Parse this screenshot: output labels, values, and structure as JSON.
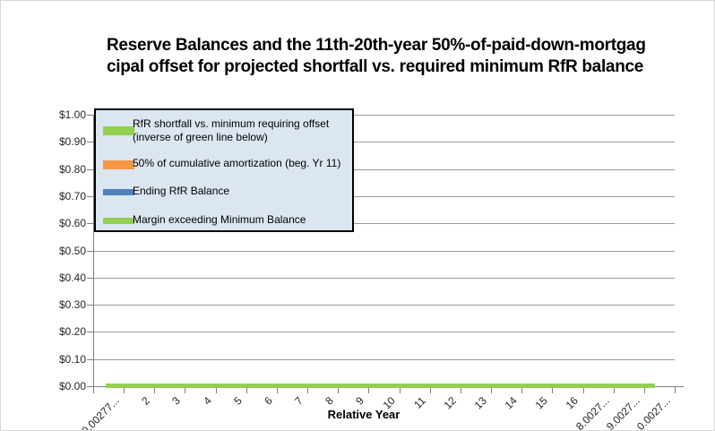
{
  "chart": {
    "title_lines": [
      "Reserve Balances and the 11th-20th-year 50%-of-paid-down-mortgag",
      "cipal offset for projected shortfall vs. required minimum RfR balance"
    ],
    "legend": {
      "items": [
        {
          "label_lines": [
            "RfR shortfall vs. minimum requiring offset",
            "(inverse of green line below)"
          ],
          "color": "#92D050",
          "swatch": "thick-bar"
        },
        {
          "label_lines": [
            "50% of cumulative amortization (beg. Yr 11)"
          ],
          "color": "#F79646",
          "swatch": "thick-bar"
        },
        {
          "label_lines": [
            "Ending RfR Balance"
          ],
          "color": "#4F81BD",
          "swatch": "line"
        },
        {
          "label_lines": [
            "Margin exceeding Minimum Balance"
          ],
          "color": "#92D050",
          "swatch": "line"
        }
      ]
    },
    "y_axis": {
      "tick_labels": [
        "$1.00",
        "$0.90",
        "$0.80",
        "$0.70",
        "$0.60",
        "$0.50",
        "$0.40",
        "$0.30",
        "$0.20",
        "$0.10",
        "$0.00"
      ]
    },
    "x_axis": {
      "title": "Relative Year",
      "tick_labels": [
        "0.00277...",
        "2",
        "3",
        "4",
        "5",
        "6",
        "7",
        "8",
        "9",
        "10",
        "11",
        "12",
        "13",
        "14",
        "15",
        "16",
        "8.0027...",
        "9.0027...",
        "0.0027..."
      ]
    },
    "colors": {
      "green": "#92D050",
      "orange": "#F79646",
      "blue": "#4F81BD",
      "legend_bg": "#DCE6F1",
      "gridline": "#9A9A9A",
      "axis": "#808080"
    }
  },
  "chart_data": {
    "type": "combo",
    "title": "Reserve Balances and the 11th-20th-year 50%-of-paid-down-mortgag... / cipal offset for projected shortfall vs. required minimum RfR balance...",
    "xlabel": "Relative Year",
    "ylabel": "",
    "ylim": [
      0,
      1
    ],
    "y_tick_step": 0.1,
    "y_tick_format": "$#.00",
    "grid": "horizontal",
    "legend_position": "upper-left-overlay",
    "categories": [
      "0.00277...",
      "2",
      "3",
      "4",
      "5",
      "6",
      "7",
      "8",
      "9",
      "10",
      "11",
      "12",
      "13",
      "14",
      "15",
      "16",
      "8.0027...",
      "9.0027...",
      "0.0027..."
    ],
    "series": [
      {
        "name": "RfR shortfall vs. minimum requiring offset (inverse of green line below)",
        "type": "bar",
        "color": "#92D050",
        "values": [
          0,
          0,
          0,
          0,
          0,
          0,
          0,
          0,
          0,
          0,
          0,
          0,
          0,
          0,
          0,
          0,
          0,
          0,
          0
        ]
      },
      {
        "name": "50% of cumulative amortization (beg. Yr 11)",
        "type": "bar",
        "color": "#F79646",
        "values": [
          0,
          0,
          0,
          0,
          0,
          0,
          0,
          0,
          0,
          0,
          0,
          0,
          0,
          0,
          0,
          0,
          0,
          0,
          0
        ]
      },
      {
        "name": "Ending RfR Balance",
        "type": "line",
        "color": "#4F81BD",
        "values": [
          0,
          0,
          0,
          0,
          0,
          0,
          0,
          0,
          0,
          0,
          0,
          0,
          0,
          0,
          0,
          0,
          0,
          0,
          0
        ]
      },
      {
        "name": "Margin exceeding Minimum Balance",
        "type": "line",
        "color": "#92D050",
        "values": [
          0,
          0,
          0,
          0,
          0,
          0,
          0,
          0,
          0,
          0,
          0,
          0,
          0,
          0,
          0,
          0,
          0,
          0,
          0
        ]
      }
    ]
  }
}
